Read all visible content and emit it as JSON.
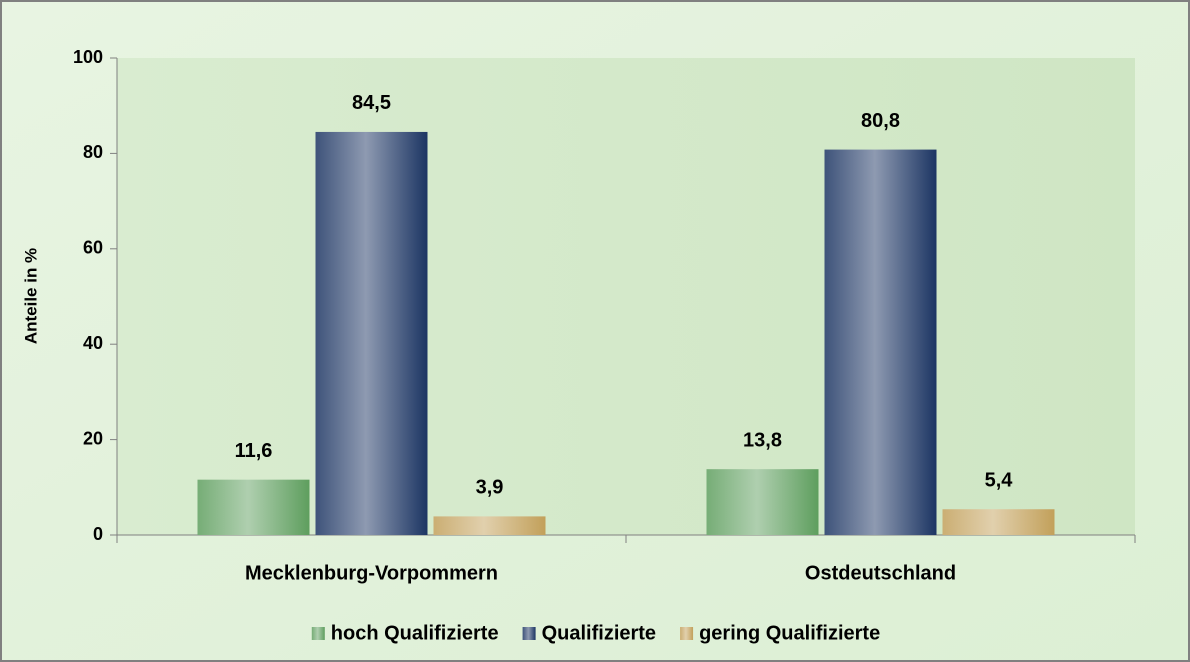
{
  "chart_data": {
    "type": "bar",
    "y_label": "Anteile in %",
    "categories": [
      "Mecklenburg-Vorpommern",
      "Ostdeutschland"
    ],
    "series": [
      {
        "name": "hoch Qualifizierte",
        "color": "#5e9e5e",
        "values": [
          11.6,
          13.8
        ],
        "value_labels": [
          "11,6",
          "13,8"
        ]
      },
      {
        "name": "Qualifizierte",
        "color": "#1c3563",
        "values": [
          84.5,
          80.8
        ],
        "value_labels": [
          "84,5",
          "80,8"
        ]
      },
      {
        "name": "gering Qualifizierte",
        "color": "#c2a05a",
        "values": [
          3.9,
          5.4
        ],
        "value_labels": [
          "3,9",
          "5,4"
        ]
      }
    ],
    "ylim": [
      0,
      100
    ],
    "yticks": [
      0,
      20,
      40,
      60,
      80,
      100
    ],
    "legend": "bottom"
  }
}
